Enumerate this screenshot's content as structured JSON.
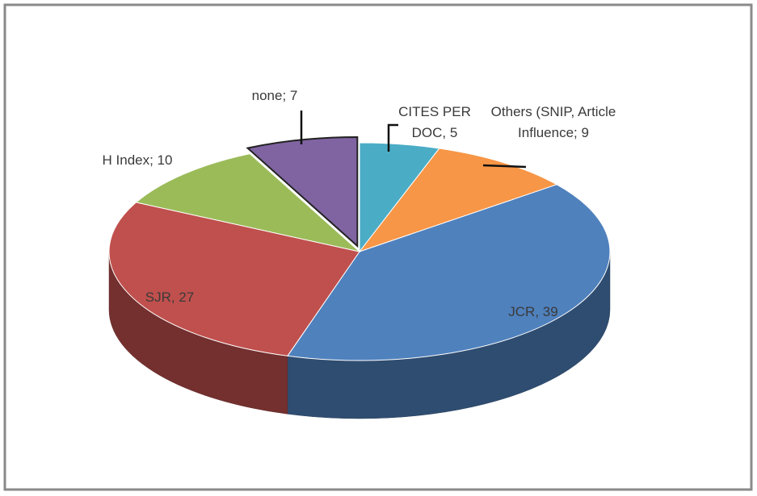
{
  "chart_data": {
    "type": "pie3d",
    "values": [
      5,
      9,
      39,
      27,
      10,
      7
    ],
    "value_labels": [
      "CITES PER DOC, 5",
      "Others (SNIP, Article Influence; 9",
      "JCR, 39",
      "SJR, 27",
      "H Index; 10",
      "none; 7"
    ],
    "colors": [
      "#4bacc6",
      "#f79646",
      "#4f81bd",
      "#c0504d",
      "#9bbb59",
      "#8064a2"
    ],
    "exploded": [
      5
    ]
  }
}
